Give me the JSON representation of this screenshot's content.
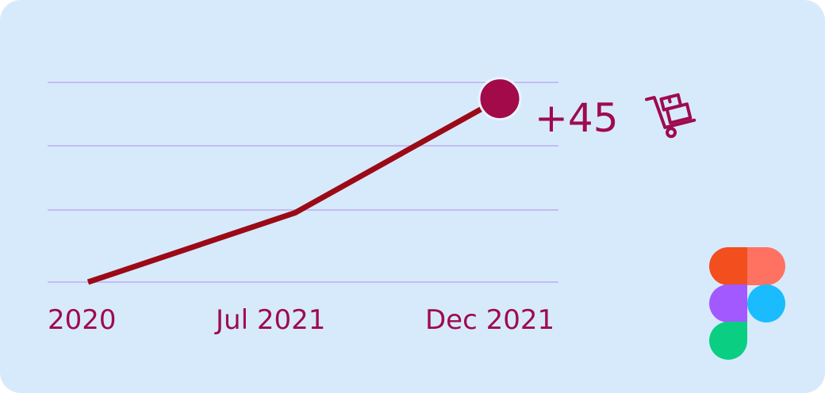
{
  "chart_data": {
    "type": "line",
    "x": [
      "2020",
      "Jul 2021",
      "Dec 2021"
    ],
    "series": [
      {
        "values": [
          0,
          17,
          45
        ]
      }
    ],
    "ylim": [
      0,
      49
    ],
    "grid": true,
    "annotation": {
      "text": "+45",
      "icon": "delivery-cart-icon"
    },
    "colors": {
      "line": "#9b0a16",
      "end_marker": "#a20a4a",
      "text": "#9e0b4e",
      "grid": "#c3bdf1",
      "background": "#d7eafc"
    }
  },
  "logo": {
    "icon": "figma-logo-icon",
    "colors": [
      "#f24e1e",
      "#ff7262",
      "#a259ff",
      "#1abcfe",
      "#0acf83"
    ]
  }
}
